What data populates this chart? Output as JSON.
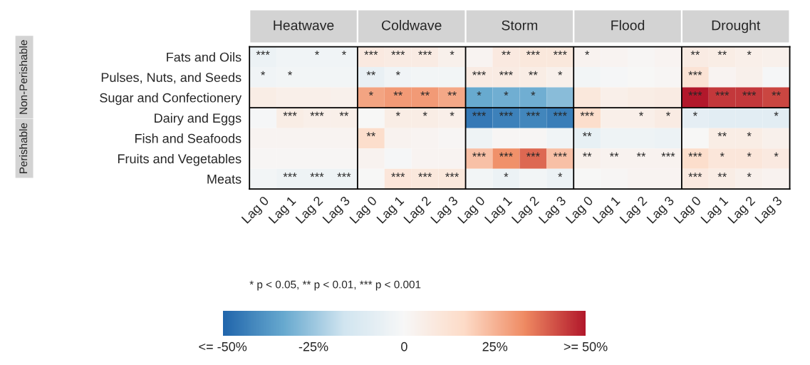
{
  "chart_data": {
    "type": "heatmap",
    "categories": [
      "Lag 0",
      "Lag 1",
      "Lag 2",
      "Lag 3",
      "Lag 0",
      "Lag 1",
      "Lag 2",
      "Lag 3",
      "Lag 0",
      "Lag 1",
      "Lag 2",
      "Lag 3",
      "Lag 0",
      "Lag 1",
      "Lag 2",
      "Lag 3",
      "Lag 0",
      "Lag 1",
      "Lag 2",
      "Lag 3"
    ],
    "y_categories": [
      "Fats and Oils",
      "Pulses, Nuts, and Seeds",
      "Sugar and Confectionery",
      "Dairy and Eggs",
      "Fish and Seafoods",
      "Fruits and Vegetables",
      "Meats"
    ],
    "cells": [
      [
        -5,
        -3,
        -3,
        -3,
        8,
        7,
        7,
        4,
        2,
        8,
        9,
        9,
        3,
        2,
        1,
        2,
        7,
        6,
        5,
        4
      ],
      [
        -3,
        -2,
        -2,
        -2,
        -6,
        -3,
        -2,
        -2,
        7,
        7,
        6,
        4,
        -2,
        -1,
        0,
        1,
        12,
        2,
        4,
        -1
      ],
      [
        6,
        5,
        5,
        4,
        28,
        30,
        30,
        27,
        -33,
        -32,
        -32,
        -28,
        9,
        5,
        6,
        7,
        50,
        45,
        45,
        43
      ],
      [
        -1,
        6,
        5,
        5,
        0,
        6,
        6,
        5,
        -45,
        -43,
        -42,
        -44,
        15,
        5,
        5,
        7,
        -8,
        -9,
        -9,
        -9
      ],
      [
        2,
        2,
        2,
        2,
        15,
        3,
        2,
        1,
        -4,
        1,
        1,
        -3,
        -7,
        -4,
        -4,
        -5,
        0,
        6,
        6,
        4
      ],
      [
        1,
        1,
        1,
        1,
        3,
        -1,
        2,
        2,
        22,
        32,
        38,
        22,
        4,
        3,
        3,
        3,
        15,
        10,
        10,
        8
      ],
      [
        -2,
        -4,
        -4,
        -4,
        0,
        10,
        9,
        9,
        -2,
        -5,
        -2,
        -5,
        0,
        1,
        2,
        2,
        8,
        6,
        4,
        3
      ]
    ],
    "cell_labels": [
      [
        "***",
        null,
        "*",
        "*",
        "***",
        "***",
        "***",
        "*",
        null,
        "**",
        "***",
        "***",
        "*",
        null,
        null,
        null,
        "**",
        "**",
        "*",
        null
      ],
      [
        "*",
        "*",
        null,
        null,
        "**",
        "*",
        null,
        null,
        "***",
        "***",
        "**",
        "*",
        null,
        null,
        null,
        null,
        "***",
        null,
        null,
        null
      ],
      [
        null,
        null,
        null,
        null,
        "*",
        "**",
        "**",
        "**",
        "*",
        "*",
        "*",
        null,
        null,
        null,
        null,
        null,
        "***",
        "***",
        "***",
        "**"
      ],
      [
        null,
        "***",
        "***",
        "**",
        null,
        "*",
        "*",
        "*",
        "***",
        "***",
        "***",
        "***",
        "***",
        null,
        "*",
        "*",
        "*",
        null,
        null,
        "*"
      ],
      [
        null,
        null,
        null,
        null,
        "**",
        null,
        null,
        null,
        null,
        null,
        null,
        null,
        "**",
        null,
        null,
        null,
        null,
        "**",
        "*",
        null
      ],
      [
        null,
        null,
        null,
        null,
        null,
        null,
        null,
        null,
        "***",
        "***",
        "***",
        "***",
        "**",
        "**",
        "**",
        "***",
        "***",
        "*",
        "*",
        "*"
      ],
      [
        null,
        "***",
        "***",
        "***",
        null,
        "***",
        "***",
        "***",
        null,
        "*",
        null,
        "*",
        null,
        null,
        null,
        null,
        "***",
        "**",
        "*",
        null
      ]
    ],
    "clim": [
      -50,
      50
    ],
    "cticks": [
      {
        "value": -50,
        "label": "<= -50%"
      },
      {
        "value": -25,
        "label": "-25%"
      },
      0,
      {
        "value": 25,
        "label": "25%"
      },
      {
        "value": 50,
        "label": ">= 50%"
      }
    ],
    "annotations": [
      "Heatwave",
      "Coldwave",
      "Storm",
      "Flood",
      "Drought",
      "Non-Perishable",
      "Perishable",
      "* p < 0.05, ** p < 0.01, *** p < 0.001"
    ]
  }
}
